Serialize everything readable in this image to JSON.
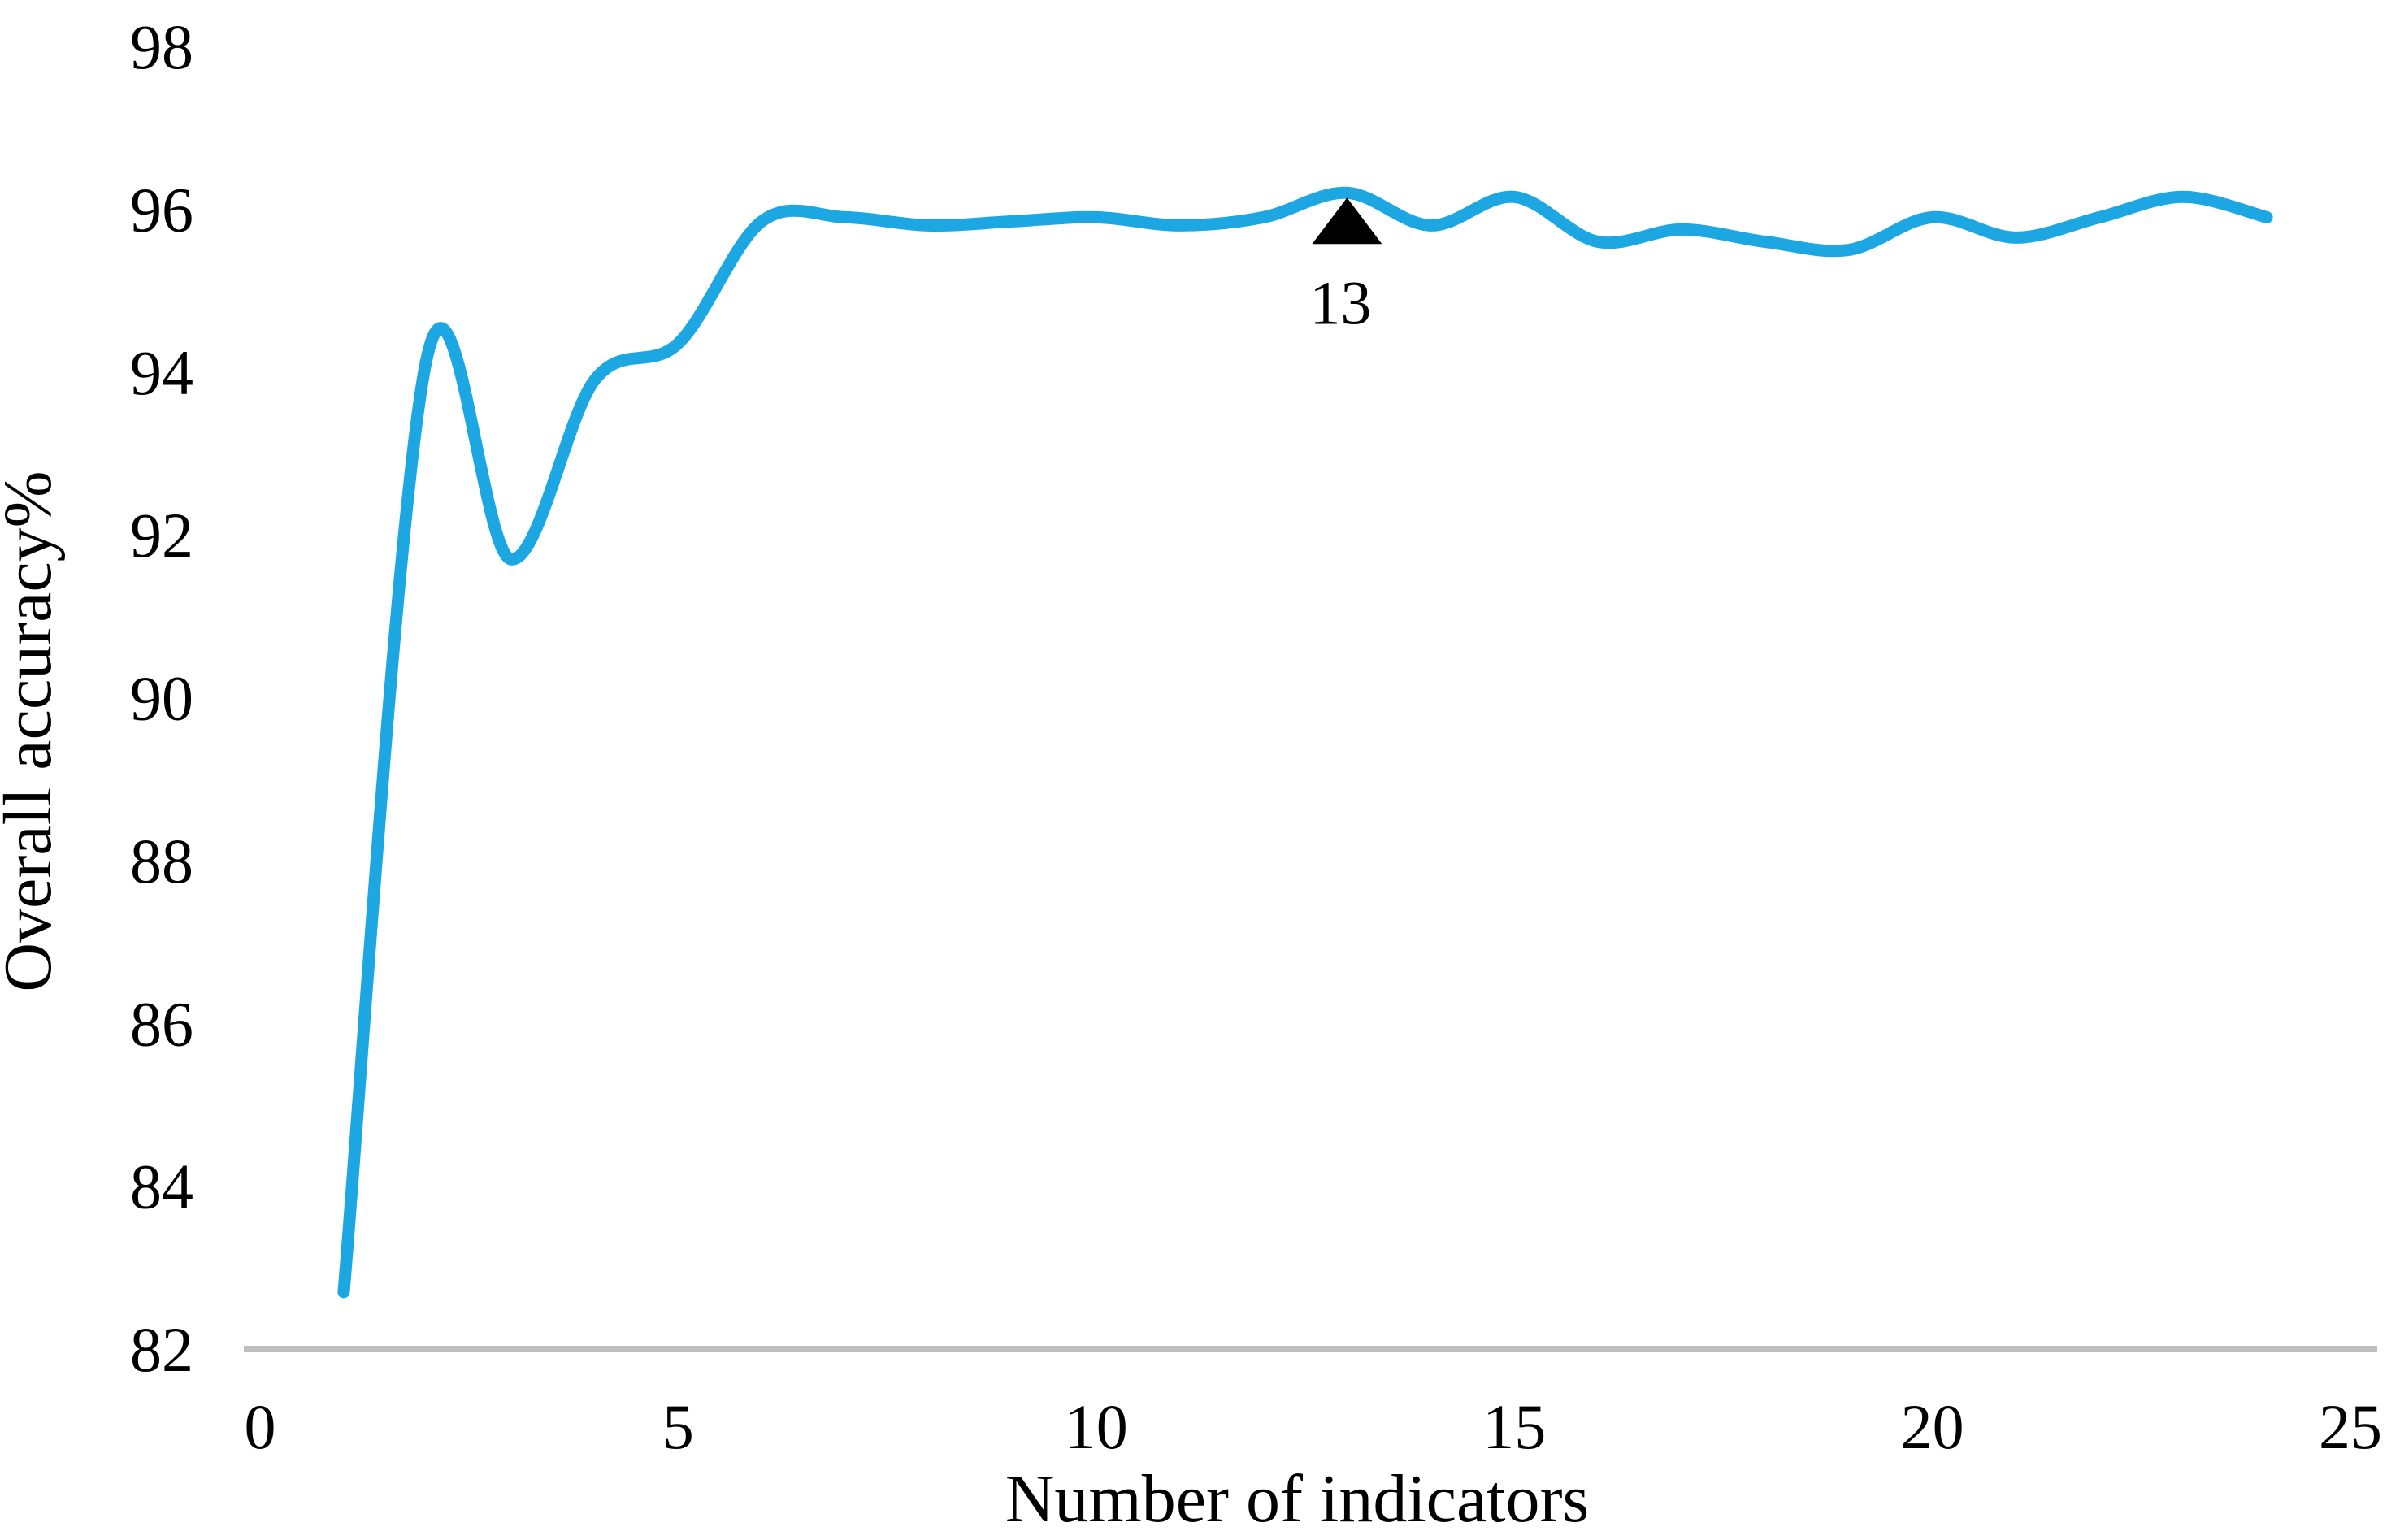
{
  "chart_data": {
    "type": "line",
    "title": "",
    "xlabel": "Number of indicators",
    "ylabel": "Overall accuracy%",
    "x": [
      1,
      2,
      3,
      4,
      5,
      6,
      7,
      8,
      9,
      10,
      11,
      12,
      13,
      14,
      15,
      16,
      17,
      18,
      19,
      20,
      21,
      22,
      23,
      24
    ],
    "values": [
      82.7,
      94.2,
      91.7,
      93.9,
      94.35,
      95.85,
      95.9,
      95.8,
      95.85,
      95.9,
      95.8,
      95.9,
      96.2,
      95.8,
      96.15,
      95.6,
      95.75,
      95.6,
      95.5,
      95.9,
      95.65,
      95.9,
      96.15,
      95.9
    ],
    "x_ticks": [
      0,
      5,
      10,
      15,
      20,
      25
    ],
    "y_ticks": [
      82,
      84,
      86,
      88,
      90,
      92,
      94,
      96,
      98
    ],
    "xlim": [
      0,
      25
    ],
    "ylim": [
      82,
      98
    ],
    "grid": false,
    "legend": "none",
    "line_color": "#1CA7E2",
    "axis_line_color": "#BFBFBF",
    "text_color": "#000000",
    "marker_color": "#000000",
    "annotation": {
      "label": "13",
      "x": 13,
      "y": 96.2,
      "marker": "black-triangle-up"
    }
  }
}
